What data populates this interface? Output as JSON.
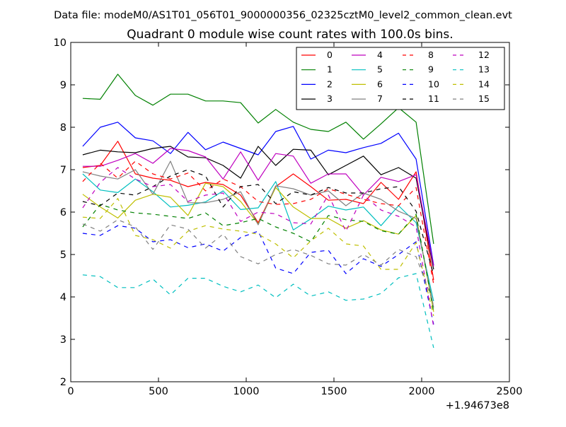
{
  "figure": {
    "suptitle": "Data file: modeM0/AS1T01_056T01_9000000356_02325cztM0_level2_common_clean.evt",
    "title": "Quadrant 0 module wise count rates with 100.0s bins.",
    "x_offset_label": "+1.94673e8"
  },
  "chart_data": {
    "type": "line",
    "title": "Quadrant 0 module wise count rates with 100.0s bins.",
    "xlabel": "",
    "ylabel": "",
    "xlim": [
      0,
      2500
    ],
    "ylim": [
      2,
      10
    ],
    "xticks": [
      0,
      500,
      1000,
      1500,
      2000,
      2500
    ],
    "yticks": [
      2,
      3,
      4,
      5,
      6,
      7,
      8,
      9,
      10
    ],
    "x_offset": "+1.94673e8",
    "grid": false,
    "legend_position": "top-right",
    "x": [
      68,
      168,
      268,
      368,
      468,
      568,
      668,
      768,
      868,
      968,
      1068,
      1168,
      1268,
      1368,
      1468,
      1568,
      1668,
      1768,
      1868,
      1968,
      2068
    ],
    "series": [
      {
        "name": "0",
        "color": "#ff0000",
        "dash": "solid",
        "values": [
          7.05,
          7.1,
          7.67,
          6.9,
          6.8,
          6.75,
          6.6,
          6.7,
          6.65,
          6.4,
          5.75,
          6.6,
          6.9,
          6.6,
          6.28,
          6.3,
          6.2,
          6.7,
          6.3,
          6.95,
          4.4
        ]
      },
      {
        "name": "1",
        "color": "#008000",
        "dash": "solid",
        "values": [
          8.68,
          8.66,
          9.25,
          8.75,
          8.52,
          8.78,
          8.78,
          8.62,
          8.62,
          8.58,
          8.1,
          8.42,
          8.12,
          7.95,
          7.9,
          8.12,
          7.72,
          8.08,
          8.46,
          8.12,
          5.25
        ]
      },
      {
        "name": "2",
        "color": "#0000ff",
        "dash": "solid",
        "values": [
          7.55,
          8.0,
          8.12,
          7.75,
          7.68,
          7.38,
          7.88,
          7.47,
          7.65,
          7.5,
          7.35,
          7.9,
          8.02,
          7.25,
          7.46,
          7.4,
          7.52,
          7.62,
          7.86,
          7.25,
          4.75
        ]
      },
      {
        "name": "3",
        "color": "#000000",
        "dash": "solid",
        "values": [
          7.35,
          7.46,
          7.42,
          7.4,
          7.5,
          7.55,
          7.3,
          7.28,
          7.1,
          6.8,
          7.55,
          7.1,
          7.48,
          7.46,
          6.88,
          7.1,
          7.32,
          6.88,
          7.05,
          6.8,
          4.65
        ]
      },
      {
        "name": "4",
        "color": "#bf00bf",
        "dash": "solid",
        "values": [
          7.08,
          7.08,
          7.22,
          7.38,
          7.15,
          7.5,
          7.45,
          7.3,
          6.78,
          7.42,
          6.75,
          7.38,
          7.32,
          6.68,
          6.9,
          6.9,
          6.4,
          6.82,
          6.72,
          6.88,
          4.72
        ]
      },
      {
        "name": "5",
        "color": "#00bfbf",
        "dash": "solid",
        "values": [
          6.9,
          6.52,
          6.46,
          6.78,
          6.48,
          6.12,
          6.16,
          6.24,
          6.5,
          6.06,
          6.1,
          6.72,
          5.58,
          5.84,
          6.14,
          6.05,
          6.12,
          5.68,
          6.15,
          5.75,
          3.9
        ]
      },
      {
        "name": "6",
        "color": "#bfbf00",
        "dash": "solid",
        "values": [
          6.42,
          6.12,
          5.86,
          6.28,
          6.42,
          6.35,
          5.92,
          6.68,
          6.6,
          6.25,
          5.72,
          6.58,
          6.12,
          5.85,
          5.85,
          5.62,
          5.8,
          5.58,
          5.48,
          5.92,
          3.65
        ]
      },
      {
        "name": "7",
        "color": "#808080",
        "dash": "solid",
        "values": [
          6.95,
          6.85,
          6.78,
          7.0,
          6.42,
          7.2,
          6.22,
          6.22,
          6.3,
          6.48,
          5.7,
          6.62,
          6.55,
          6.4,
          6.5,
          6.15,
          6.45,
          6.3,
          6.02,
          5.85,
          3.75
        ]
      },
      {
        "name": "8",
        "color": "#ff0000",
        "dash": "dashed",
        "values": [
          6.72,
          7.15,
          6.8,
          7.2,
          6.9,
          6.78,
          6.92,
          6.5,
          6.78,
          6.6,
          6.25,
          6.18,
          6.2,
          6.3,
          6.55,
          6.42,
          6.3,
          6.2,
          6.15,
          6.58,
          4.3
        ]
      },
      {
        "name": "9",
        "color": "#008000",
        "dash": "dashed",
        "values": [
          5.65,
          6.18,
          6.05,
          5.98,
          5.95,
          5.9,
          5.85,
          5.98,
          5.68,
          5.75,
          5.85,
          5.65,
          5.5,
          5.3,
          5.92,
          5.82,
          5.78,
          5.56,
          5.48,
          5.95,
          3.65
        ]
      },
      {
        "name": "10",
        "color": "#0000ff",
        "dash": "dashed",
        "values": [
          5.5,
          5.45,
          5.68,
          5.62,
          5.3,
          5.35,
          5.16,
          5.25,
          5.08,
          5.4,
          5.55,
          4.68,
          4.55,
          5.05,
          5.1,
          4.55,
          4.9,
          4.72,
          5.0,
          5.3,
          3.35
        ]
      },
      {
        "name": "11",
        "color": "#000000",
        "dash": "dashed",
        "values": [
          6.25,
          6.15,
          6.45,
          6.4,
          6.6,
          6.85,
          7.0,
          6.85,
          6.12,
          6.6,
          6.65,
          6.2,
          6.48,
          6.4,
          6.58,
          6.45,
          6.45,
          6.55,
          6.6,
          6.02,
          4.52
        ]
      },
      {
        "name": "12",
        "color": "#bf00bf",
        "dash": "dashed",
        "values": [
          6.1,
          6.7,
          7.05,
          6.78,
          6.6,
          6.65,
          6.25,
          6.4,
          6.45,
          5.78,
          6.0,
          5.96,
          5.75,
          5.72,
          6.4,
          5.55,
          6.4,
          6.05,
          5.9,
          5.65,
          3.3
        ]
      },
      {
        "name": "13",
        "color": "#00bfbf",
        "dash": "dashed",
        "values": [
          4.52,
          4.48,
          4.22,
          4.22,
          4.42,
          4.05,
          4.44,
          4.44,
          4.25,
          4.12,
          4.28,
          3.98,
          4.3,
          4.02,
          4.12,
          3.92,
          3.95,
          4.08,
          4.45,
          4.55,
          2.8
        ]
      },
      {
        "name": "14",
        "color": "#bfbf00",
        "dash": "dashed",
        "values": [
          5.88,
          5.85,
          6.32,
          5.45,
          5.35,
          5.15,
          5.55,
          5.68,
          5.6,
          5.55,
          5.48,
          5.25,
          4.92,
          5.32,
          5.62,
          5.25,
          5.2,
          4.65,
          4.65,
          5.28,
          3.55
        ]
      },
      {
        "name": "15",
        "color": "#808080",
        "dash": "dashed",
        "values": [
          5.72,
          5.55,
          5.82,
          5.65,
          5.12,
          5.7,
          5.6,
          5.15,
          5.48,
          4.95,
          4.78,
          5.0,
          5.12,
          4.98,
          4.78,
          4.75,
          5.0,
          4.75,
          5.12,
          4.95,
          3.85
        ]
      }
    ]
  }
}
